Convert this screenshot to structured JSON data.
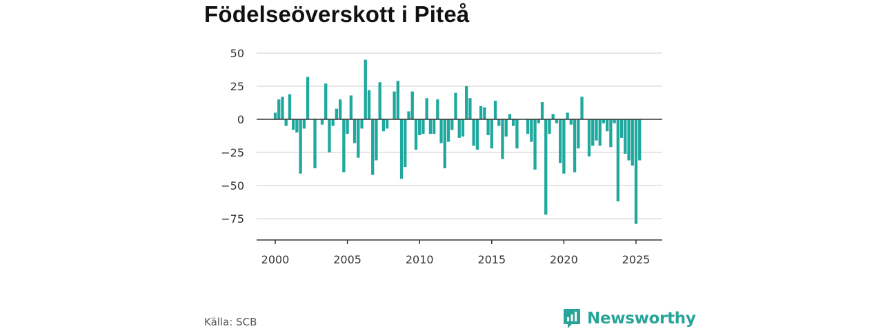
{
  "title": "Födelseöverskott i Piteå",
  "source": "Källa: SCB",
  "brand": {
    "name": "Newsworthy",
    "icon": "newsworthy-logo-icon",
    "color": "#28a599"
  },
  "colors": {
    "bar": "#1fa89d",
    "grid": "#dddddd",
    "zero_line": "#333333",
    "axis": "#333333"
  },
  "chart_data": {
    "type": "bar",
    "title": "Födelseöverskott i Piteå",
    "xlabel": "",
    "ylabel": "",
    "x_ticks": [
      2000,
      2005,
      2010,
      2015,
      2020,
      2025
    ],
    "y_ticks": [
      50,
      25,
      0,
      -25,
      -50,
      -75
    ],
    "y_tick_labels": [
      "50",
      "25",
      "0",
      "−25",
      "−50",
      "−75"
    ],
    "ylim": [
      -85,
      52
    ],
    "xlim": [
      1999.2,
      2026.9
    ],
    "grid": true,
    "legend": "none",
    "x": [
      2000.0,
      2000.25,
      2000.5,
      2000.75,
      2001.0,
      2001.25,
      2001.5,
      2001.75,
      2002.0,
      2002.25,
      2002.5,
      2002.75,
      2003.0,
      2003.25,
      2003.5,
      2003.75,
      2004.0,
      2004.25,
      2004.5,
      2004.75,
      2005.0,
      2005.25,
      2005.5,
      2005.75,
      2006.0,
      2006.25,
      2006.5,
      2006.75,
      2007.0,
      2007.25,
      2007.5,
      2007.75,
      2008.0,
      2008.25,
      2008.5,
      2008.75,
      2009.0,
      2009.25,
      2009.5,
      2009.75,
      2010.0,
      2010.25,
      2010.5,
      2010.75,
      2011.0,
      2011.25,
      2011.5,
      2011.75,
      2012.0,
      2012.25,
      2012.5,
      2012.75,
      2013.0,
      2013.25,
      2013.5,
      2013.75,
      2014.0,
      2014.25,
      2014.5,
      2014.75,
      2015.0,
      2015.25,
      2015.5,
      2015.75,
      2016.0,
      2016.25,
      2016.5,
      2016.75,
      2017.0,
      2017.25,
      2017.5,
      2017.75,
      2018.0,
      2018.25,
      2018.5,
      2018.75,
      2019.0,
      2019.25,
      2019.5,
      2019.75,
      2020.0,
      2020.25,
      2020.5,
      2020.75,
      2021.0,
      2021.25,
      2021.5,
      2021.75,
      2022.0,
      2022.25,
      2022.5,
      2022.75,
      2023.0,
      2023.25,
      2023.5,
      2023.75,
      2024.0,
      2024.25,
      2024.5,
      2024.75,
      2025.0,
      2025.25,
      2025.5
    ],
    "values": [
      5,
      15,
      17,
      -5,
      19,
      -8,
      -10,
      -41,
      -7,
      32,
      0,
      -37,
      0,
      -4,
      27,
      -25,
      -5,
      8,
      15,
      -40,
      -11,
      18,
      -18,
      -29,
      -7,
      45,
      22,
      -42,
      -31,
      28,
      -9,
      -7,
      0,
      21,
      29,
      -45,
      -36,
      6,
      21,
      -23,
      -12,
      -11,
      16,
      -11,
      -11,
      15,
      -18,
      -37,
      -17,
      -8,
      20,
      -14,
      -13,
      25,
      16,
      -20,
      -23,
      10,
      9,
      -12,
      -22,
      14,
      -5,
      -30,
      -13,
      4,
      -5,
      -22,
      0,
      0,
      -11,
      -17,
      -38,
      -3,
      13,
      -72,
      -11,
      4,
      -3,
      -33,
      -41,
      5,
      -4,
      -40,
      -22,
      17,
      0,
      -28,
      -20,
      -16,
      -20,
      -3,
      -9,
      -21,
      -3,
      -62,
      -14,
      -26,
      -31,
      -35,
      -79,
      -31,
      0
    ]
  }
}
